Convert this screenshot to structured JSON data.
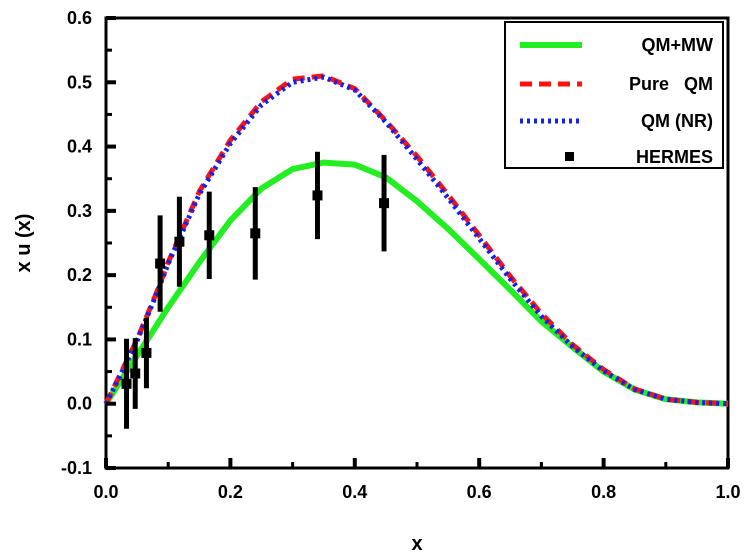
{
  "chart_data": {
    "type": "line",
    "xlabel": "x",
    "ylabel": "x  u (x)",
    "xlim": [
      0.0,
      1.0
    ],
    "ylim": [
      -0.1,
      0.6
    ],
    "x_ticks": [
      "0.0",
      "0.2",
      "0.4",
      "0.6",
      "0.8",
      "1.0"
    ],
    "y_ticks": [
      "-0.1",
      "0.0",
      "0.1",
      "0.2",
      "0.3",
      "0.4",
      "0.5",
      "0.6"
    ],
    "x_tick_values": [
      0.0,
      0.2,
      0.4,
      0.6,
      0.8,
      1.0
    ],
    "y_tick_values": [
      -0.1,
      0.0,
      0.1,
      0.2,
      0.3,
      0.4,
      0.5,
      0.6
    ],
    "grid": false,
    "legend_position": "top-right",
    "series": [
      {
        "name": "QM+MW",
        "style": "solid",
        "color": "#22ee22",
        "x": [
          0.0,
          0.02,
          0.05,
          0.08,
          0.1,
          0.15,
          0.2,
          0.25,
          0.3,
          0.35,
          0.4,
          0.45,
          0.5,
          0.55,
          0.6,
          0.65,
          0.7,
          0.75,
          0.8,
          0.85,
          0.9,
          0.95,
          1.0
        ],
        "y": [
          0.0,
          0.03,
          0.075,
          0.12,
          0.15,
          0.22,
          0.285,
          0.335,
          0.365,
          0.375,
          0.372,
          0.352,
          0.315,
          0.272,
          0.225,
          0.177,
          0.128,
          0.088,
          0.05,
          0.022,
          0.007,
          0.002,
          0.0
        ]
      },
      {
        "name": "Pure   QM",
        "style": "dashed",
        "color": "#ff1111",
        "x": [
          0.0,
          0.02,
          0.05,
          0.08,
          0.1,
          0.15,
          0.2,
          0.25,
          0.3,
          0.35,
          0.4,
          0.45,
          0.5,
          0.55,
          0.6,
          0.65,
          0.7,
          0.75,
          0.8,
          0.85,
          0.9,
          0.95,
          1.0
        ],
        "y": [
          0.0,
          0.04,
          0.1,
          0.17,
          0.22,
          0.33,
          0.41,
          0.47,
          0.505,
          0.51,
          0.49,
          0.44,
          0.385,
          0.325,
          0.262,
          0.198,
          0.14,
          0.092,
          0.053,
          0.023,
          0.007,
          0.002,
          0.0
        ]
      },
      {
        "name": "QM (NR)",
        "style": "dotted",
        "color": "#1122ee",
        "x": [
          0.0,
          0.02,
          0.05,
          0.08,
          0.1,
          0.15,
          0.2,
          0.25,
          0.3,
          0.35,
          0.4,
          0.45,
          0.5,
          0.55,
          0.6,
          0.65,
          0.7,
          0.75,
          0.8,
          0.85,
          0.9,
          0.95,
          1.0
        ],
        "y": [
          0.0,
          0.038,
          0.098,
          0.168,
          0.218,
          0.326,
          0.405,
          0.465,
          0.5,
          0.508,
          0.488,
          0.438,
          0.38,
          0.32,
          0.257,
          0.194,
          0.136,
          0.089,
          0.051,
          0.022,
          0.007,
          0.002,
          0.0
        ]
      },
      {
        "name": "HERMES",
        "style": "points",
        "color": "#000000",
        "x": [
          0.033,
          0.047,
          0.065,
          0.087,
          0.118,
          0.166,
          0.24,
          0.34,
          0.447
        ],
        "y": [
          0.031,
          0.047,
          0.079,
          0.218,
          0.252,
          0.262,
          0.265,
          0.324,
          0.312
        ],
        "err": [
          0.07,
          0.055,
          0.055,
          0.075,
          0.07,
          0.068,
          0.072,
          0.068,
          0.075
        ]
      }
    ]
  }
}
